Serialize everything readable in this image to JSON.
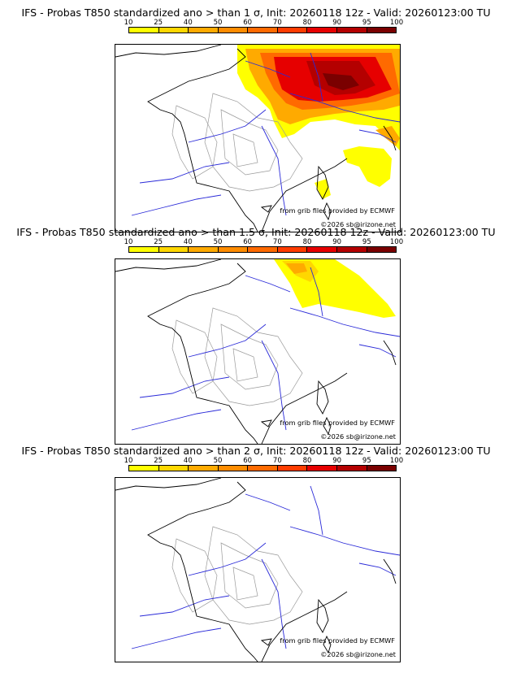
{
  "panels": [
    {
      "title": "IFS - Probas T850  standardized ano > than 1 σ, Init: 20260118 12z - Valid: 20260123:00 TU",
      "threshold": "1"
    },
    {
      "title": "IFS - Probas T850  standardized ano > than 1.5 σ, Init: 20260118 12z - Valid: 20260123:00 TU",
      "threshold": "1.5"
    },
    {
      "title": "IFS - Probas T850  standardized ano > than 2 σ, Init: 20260118 12z - Valid: 20260123:00 TU",
      "threshold": "2"
    }
  ],
  "colorbar": {
    "labels": [
      "10",
      "25",
      "40",
      "50",
      "60",
      "70",
      "80",
      "90",
      "95",
      "100"
    ],
    "colors": [
      "#ffff00",
      "#ffd700",
      "#ffaa00",
      "#ff8c00",
      "#ff6a00",
      "#ff3c00",
      "#e60000",
      "#b40000",
      "#7a0000"
    ]
  },
  "credits": {
    "source": "from grib files provided by ECMWF",
    "copyright": "©2026 sb@irizone.net"
  },
  "colors": {
    "coast": "#000000",
    "rivers": "#2a2ad8",
    "borders": "#9a9a9a"
  }
}
